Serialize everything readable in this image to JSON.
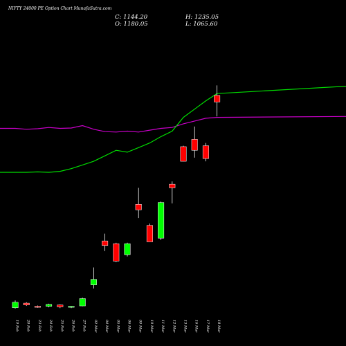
{
  "header": {
    "title": "NIFTY 24000  PE Option  Chart MunafaSutra.com",
    "close_label": "C: 1144.20",
    "high_label": "H: 1235.05",
    "open_label": "O: 1180.05",
    "low_label": "L: 1065.60"
  },
  "chart_data": {
    "type": "candlestick",
    "title": "NIFTY 24000  PE Option  Chart MunafaSutra.com",
    "colors": {
      "up": "#00ff00",
      "down": "#ff0000",
      "line_green": "#00dd00",
      "line_magenta": "#cc00cc",
      "wick": "#ffffff",
      "background": "#000000"
    },
    "price_range": [
      0,
      1550
    ],
    "categories": [
      "19 Feb",
      "20 Feb",
      "23 Feb",
      "24 Feb",
      "25 Feb",
      "26 Feb",
      "27 Feb",
      "02 Mar",
      "04 Mar",
      "05 Mar",
      "06 Mar",
      "09 Mar",
      "10 Mar",
      "11 Mar",
      "12 Mar",
      "13 Mar",
      "16 Mar",
      "17 Mar",
      "18 Mar"
    ],
    "candles": [
      {
        "o": 20,
        "h": 60,
        "l": 15,
        "c": 50
      },
      {
        "o": 45,
        "h": 50,
        "l": 30,
        "c": 35
      },
      {
        "o": 28,
        "h": 32,
        "l": 20,
        "c": 24
      },
      {
        "o": 28,
        "h": 42,
        "l": 22,
        "c": 38
      },
      {
        "o": 35,
        "h": 38,
        "l": 18,
        "c": 25
      },
      {
        "o": 24,
        "h": 30,
        "l": 18,
        "c": 28
      },
      {
        "o": 30,
        "h": 75,
        "l": 28,
        "c": 70
      },
      {
        "o": 145,
        "h": 240,
        "l": 125,
        "c": 175
      },
      {
        "o": 385,
        "h": 425,
        "l": 330,
        "c": 360
      },
      {
        "o": 370,
        "h": 375,
        "l": 270,
        "c": 275
      },
      {
        "o": 310,
        "h": 375,
        "l": 300,
        "c": 370
      },
      {
        "o": 585,
        "h": 675,
        "l": 510,
        "c": 555
      },
      {
        "o": 470,
        "h": 480,
        "l": 380,
        "c": 380
      },
      {
        "o": 400,
        "h": 600,
        "l": 390,
        "c": 595
      },
      {
        "o": 695,
        "h": 710,
        "l": 590,
        "c": 675
      },
      {
        "o": 900,
        "h": 905,
        "l": 820,
        "c": 820
      },
      {
        "o": 940,
        "h": 1010,
        "l": 840,
        "c": 880
      },
      {
        "o": 905,
        "h": 920,
        "l": 820,
        "c": 835
      },
      {
        "o": 1180,
        "h": 1235,
        "l": 1065,
        "c": 1144
      }
    ],
    "series": [
      {
        "values": [
          1000,
          995,
          998,
          1005,
          1000,
          1002,
          1015,
          995,
          982,
          980,
          985,
          980,
          990,
          1000,
          1005,
          1025,
          1040,
          1055,
          1060
        ]
      },
      {
        "values": [
          760,
          760,
          762,
          760,
          765,
          780,
          800,
          820,
          850,
          880,
          870,
          895,
          920,
          955,
          985,
          1060,
          1105,
          1150,
          1190
        ]
      }
    ]
  }
}
